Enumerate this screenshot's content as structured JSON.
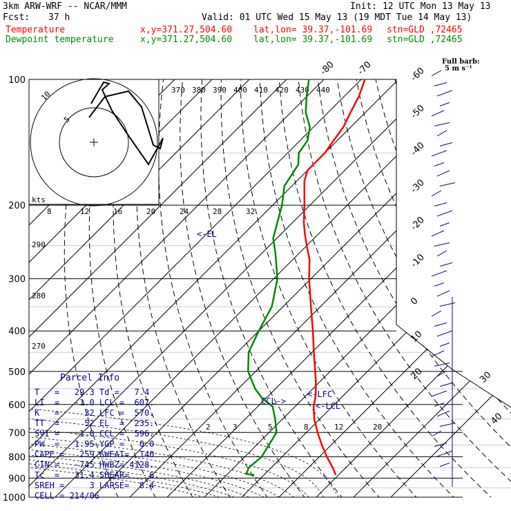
{
  "header": {
    "model": "3km ARW-WRF -- NCAR/MMM",
    "init": "Init: 12 UTC Mon 13 May 13",
    "fcst_label": "Fcst:",
    "fcst_value": "37 h",
    "valid": "Valid: 01 UTC Wed 15 May 13 (19 MDT Tue 14 May 13)",
    "temp_label": "Temperature",
    "dew_label": "Dewpoint temperature",
    "xy": "x,y=371.27,504.60",
    "latlon": "lat,lon= 39.37,-101.69",
    "stn": "stn=GLD ,72465"
  },
  "barb_key": {
    "title": "Full barb:",
    "value": "5 m s⁻¹"
  },
  "parcel_info": {
    "title": "Parcel Info",
    "rows": [
      "T   =   29.3 Td =   7.4",
      "LI  =   -1.0 LCL =  607.",
      "K   =     32 LFC =  570.",
      "TT  =     52 EL  =  235.",
      "SVI =   -1.0 CCL =  596.",
      "PW  =   1.95 YGP =   0.0",
      "CAPE =   259 SWEAT=  140",
      "CIN =   -745 HWBZ= 4128.",
      "Tc  =   31.4 SHEAR=    6.",
      "SREH =     3 LAPSE=  8.4",
      "CELL = 214/06"
    ]
  },
  "hodograph": {
    "units_label": "kts",
    "ring_labels": [
      "5",
      "10"
    ]
  },
  "chart_data": {
    "type": "line",
    "title": "",
    "ylabel": "",
    "pressure_levels": [
      100,
      200,
      300,
      400,
      500,
      600,
      700,
      800,
      900,
      1000
    ],
    "isotherm_labels": [
      "-80",
      "-70",
      "-60",
      "-50",
      "-40",
      "-30",
      "-20",
      "-10",
      "0",
      "10",
      "20",
      "30",
      "40"
    ],
    "isotherm_values": [
      -80,
      -70,
      -60,
      -50,
      -40,
      -30,
      -20,
      -10,
      0,
      10,
      20,
      30,
      40
    ],
    "theta_labels": [
      "370",
      "380",
      "390",
      "400",
      "410",
      "420",
      "430",
      "440"
    ],
    "theta_values": [
      370,
      380,
      390,
      400,
      410,
      420,
      430,
      440
    ],
    "theta_left_labels": [
      "290",
      "280",
      "270"
    ],
    "mixing_top_labels": [
      "8",
      "12",
      "16",
      "20",
      "24",
      "28",
      "32"
    ],
    "mixing_bottom_labels": [
      "2",
      "3",
      "5",
      "8",
      "12",
      "20"
    ],
    "levels_marked": [
      {
        "label": "<-EL",
        "p": 235
      },
      {
        "label": "<-LFC",
        "p": 570
      },
      {
        "label": "<-LCL",
        "p": 607
      },
      {
        "label": "CCL->",
        "p": 596
      }
    ],
    "series": [
      {
        "name": "Temperature",
        "color": "#ff0000",
        "p": [
          885,
          850,
          800,
          750,
          700,
          650,
          607,
          570,
          530,
          500,
          450,
          400,
          350,
          300,
          270,
          250,
          235,
          220,
          200,
          190,
          175,
          165,
          150,
          140,
          130,
          120,
          110,
          100
        ],
        "t": [
          29.3,
          26.5,
          22.0,
          17.5,
          13.0,
          8.5,
          5.0,
          2.5,
          -1.0,
          -4.0,
          -9.5,
          -15.5,
          -22.5,
          -30.5,
          -35.5,
          -40.0,
          -43.5,
          -47.0,
          -51.5,
          -54.0,
          -58.0,
          -60.0,
          -60.0,
          -61.0,
          -62.0,
          -64.0,
          -66.0,
          -69.0
        ]
      },
      {
        "name": "Dewpoint temperature",
        "color": "#008800",
        "p": [
          885,
          880,
          850,
          800,
          700,
          650,
          607,
          580,
          550,
          500,
          450,
          400,
          350,
          300,
          260,
          240,
          200,
          180,
          160,
          150,
          140,
          130,
          120,
          110,
          100
        ],
        "t": [
          7.4,
          5.0,
          4.0,
          4.5,
          2.0,
          -2.0,
          -6.0,
          -11.0,
          -15.5,
          -22.0,
          -27.0,
          -30.0,
          -33.0,
          -39.0,
          -46.5,
          -51.0,
          -57.5,
          -62.0,
          -64.0,
          -67.0,
          -68.0,
          -71.0,
          -76.0,
          -80.0,
          -84.0
        ]
      }
    ]
  }
}
